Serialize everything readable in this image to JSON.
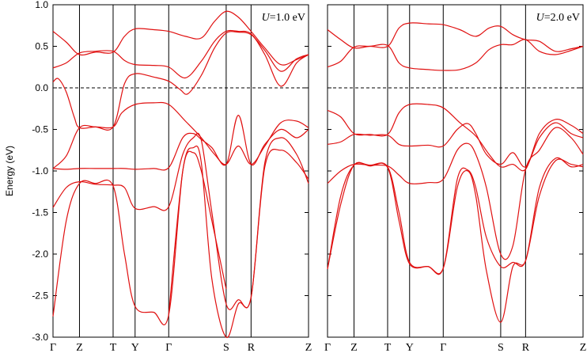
{
  "chart_data": [
    {
      "type": "line",
      "title": "",
      "annotation": {
        "symbol": "U",
        "text": "=1.0 eV"
      },
      "xlabel": "",
      "ylabel": "Energy (eV)",
      "ylim": [
        -3.0,
        1.0
      ],
      "yticks": [
        "1.0",
        "0.5",
        "0.0",
        "-0.5",
        "-1.0",
        "-1.5",
        "-2.0",
        "-2.5",
        "-3.0"
      ],
      "ytick_values": [
        1.0,
        0.5,
        0.0,
        -0.5,
        -1.0,
        -1.5,
        -2.0,
        -2.5,
        -3.0
      ],
      "fermi_level": 0.0,
      "grid": false,
      "kpoints": [
        {
          "label": "Γ",
          "pos": 0.0
        },
        {
          "label": "Z",
          "pos": 1.0
        },
        {
          "label": "T",
          "pos": 2.27
        },
        {
          "label": "Y",
          "pos": 3.1
        },
        {
          "label": "Γ",
          "pos": 4.37
        },
        {
          "label": "S",
          "pos": 6.54
        },
        {
          "label": "R",
          "pos": 7.48
        },
        {
          "label": "Z",
          "pos": 9.65
        }
      ],
      "bands": [
        {
          "x": [
            0,
            0.5,
            1.0,
            1.6,
            2.27,
            2.7,
            3.1,
            3.8,
            4.37,
            5.0,
            5.6,
            6.1,
            6.54,
            7.0,
            7.48,
            8.0,
            8.6,
            9.2,
            9.65
          ],
          "y": [
            0.68,
            0.55,
            0.4,
            0.43,
            0.43,
            0.62,
            0.71,
            0.7,
            0.68,
            0.62,
            0.6,
            0.8,
            0.92,
            0.85,
            0.68,
            0.48,
            0.28,
            0.34,
            0.4
          ]
        },
        {
          "x": [
            0,
            0.5,
            1.0,
            1.6,
            2.27,
            2.7,
            3.1,
            3.8,
            4.37,
            5.0,
            5.6,
            6.1,
            6.54,
            7.0,
            7.48,
            8.0,
            8.6,
            9.2,
            9.65
          ],
          "y": [
            0.24,
            0.3,
            0.42,
            0.44,
            0.44,
            0.33,
            0.28,
            0.27,
            0.25,
            0.12,
            0.32,
            0.56,
            0.68,
            0.68,
            0.65,
            0.4,
            0.02,
            0.3,
            0.4
          ]
        },
        {
          "x": [
            0,
            0.2,
            0.5,
            0.8,
            1.0,
            1.6,
            2.27,
            2.7,
            3.1,
            3.8,
            4.37,
            4.8,
            5.1,
            5.6,
            6.1,
            6.54,
            7.0,
            7.48,
            8.0,
            8.6,
            9.2,
            9.65
          ],
          "y": [
            0.07,
            0.11,
            -0.05,
            -0.35,
            -0.48,
            -0.47,
            -0.47,
            0.05,
            0.17,
            0.13,
            0.08,
            -0.02,
            -0.07,
            0.15,
            0.48,
            0.66,
            0.67,
            0.64,
            0.45,
            0.2,
            0.35,
            0.4
          ]
        },
        {
          "x": [
            0,
            0.5,
            1.0,
            1.6,
            2.27,
            2.6,
            3.1,
            3.8,
            4.37,
            5.0,
            5.6,
            6.1,
            6.54,
            7.0,
            7.48,
            8.0,
            8.6,
            9.2,
            9.65
          ],
          "y": [
            -0.97,
            -0.82,
            -0.48,
            -0.47,
            -0.47,
            -0.3,
            -0.2,
            -0.18,
            -0.2,
            -0.4,
            -0.6,
            -0.8,
            -0.92,
            -0.7,
            -0.92,
            -0.7,
            -0.42,
            -0.4,
            -0.48
          ]
        },
        {
          "x": [
            0,
            0.5,
            1.0,
            1.6,
            2.27,
            2.7,
            3.1,
            3.8,
            4.37,
            4.9,
            5.3,
            5.6,
            6.0,
            6.54,
            7.0,
            7.48,
            8.0,
            8.6,
            9.2,
            9.65
          ],
          "y": [
            -0.97,
            -0.98,
            -0.97,
            -0.97,
            -0.97,
            -0.97,
            -0.98,
            -0.97,
            -0.96,
            -0.6,
            -0.55,
            -0.62,
            -0.72,
            -0.92,
            -0.33,
            -0.92,
            -0.68,
            -0.5,
            -0.6,
            -0.5
          ]
        },
        {
          "x": [
            0,
            0.5,
            1.0,
            1.6,
            2.27,
            2.7,
            3.1,
            3.8,
            4.37,
            4.9,
            5.3,
            5.6,
            6.0,
            6.54,
            7.0,
            7.48,
            8.0,
            8.6,
            9.2,
            9.65
          ],
          "y": [
            -1.44,
            -1.2,
            -1.13,
            -1.16,
            -1.17,
            -1.2,
            -1.45,
            -1.43,
            -1.43,
            -0.8,
            -0.6,
            -0.63,
            -1.5,
            -2.6,
            -2.55,
            -2.52,
            -0.9,
            -0.6,
            -0.8,
            -1.15
          ]
        },
        {
          "x": [
            0,
            0.5,
            1.0,
            1.6,
            2.27,
            2.7,
            3.1,
            3.8,
            4.37,
            4.9,
            5.3,
            5.6,
            6.0,
            6.54,
            7.0,
            7.48,
            8.0,
            8.6,
            9.2,
            9.65
          ],
          "y": [
            -2.75,
            -1.6,
            -1.15,
            -1.15,
            -1.18,
            -2.0,
            -2.63,
            -2.7,
            -2.73,
            -1.0,
            -0.72,
            -0.9,
            -2.3,
            -3.0,
            -2.6,
            -2.52,
            -0.95,
            -0.75,
            -0.9,
            -1.1
          ]
        },
        {
          "x": [
            4.37,
            4.9,
            5.3,
            5.6,
            6.0,
            6.54
          ],
          "y": [
            -2.73,
            -1.0,
            -0.78,
            -1.0,
            -1.6,
            -2.42
          ]
        }
      ]
    },
    {
      "type": "line",
      "title": "",
      "annotation": {
        "symbol": "U",
        "text": "=2.0 eV"
      },
      "xlabel": "",
      "ylabel": "",
      "ylim": [
        -3.0,
        1.0
      ],
      "fermi_level": 0.0,
      "grid": false,
      "kpoints": [
        {
          "label": "Γ",
          "pos": 0.0
        },
        {
          "label": "Z",
          "pos": 1.0
        },
        {
          "label": "T",
          "pos": 2.27
        },
        {
          "label": "Y",
          "pos": 3.1
        },
        {
          "label": "Γ",
          "pos": 4.37
        },
        {
          "label": "S",
          "pos": 6.54
        },
        {
          "label": "R",
          "pos": 7.48
        },
        {
          "label": "Z",
          "pos": 9.65
        }
      ],
      "bands": [
        {
          "x": [
            0,
            0.5,
            1.0,
            1.6,
            2.27,
            2.7,
            3.1,
            3.8,
            4.37,
            5.0,
            5.6,
            6.1,
            6.54,
            7.0,
            7.48,
            8.0,
            8.6,
            9.2,
            9.65
          ],
          "y": [
            0.7,
            0.58,
            0.48,
            0.5,
            0.5,
            0.72,
            0.78,
            0.77,
            0.76,
            0.7,
            0.62,
            0.72,
            0.74,
            0.64,
            0.58,
            0.56,
            0.44,
            0.47,
            0.5
          ]
        },
        {
          "x": [
            0,
            0.5,
            1.0,
            1.6,
            2.27,
            2.7,
            3.1,
            3.8,
            4.37,
            5.0,
            5.6,
            6.1,
            6.54,
            7.0,
            7.48,
            8.0,
            8.6,
            9.2,
            9.65
          ],
          "y": [
            0.25,
            0.32,
            0.49,
            0.5,
            0.51,
            0.3,
            0.24,
            0.22,
            0.21,
            0.22,
            0.3,
            0.46,
            0.52,
            0.52,
            0.58,
            0.44,
            0.4,
            0.45,
            0.5
          ]
        },
        {
          "x": [
            0,
            0.5,
            1.0,
            1.6,
            2.27,
            2.7,
            3.1,
            3.8,
            4.37,
            5.0,
            5.6,
            6.1,
            6.54,
            7.0,
            7.48,
            8.0,
            8.6,
            9.2,
            9.65
          ],
          "y": [
            -0.27,
            -0.35,
            -0.55,
            -0.56,
            -0.56,
            -0.3,
            -0.2,
            -0.2,
            -0.24,
            -0.42,
            -0.58,
            -0.8,
            -0.95,
            -0.92,
            -0.98,
            -0.55,
            -0.38,
            -0.45,
            -0.55
          ]
        },
        {
          "x": [
            0,
            0.5,
            1.0,
            1.6,
            2.27,
            2.7,
            3.1,
            3.8,
            4.37,
            4.9,
            5.3,
            5.6,
            6.0,
            6.54,
            7.0,
            7.48,
            8.0,
            8.6,
            9.2,
            9.65
          ],
          "y": [
            -0.68,
            -0.65,
            -0.56,
            -0.57,
            -0.57,
            -0.68,
            -0.7,
            -0.69,
            -0.7,
            -0.5,
            -0.43,
            -0.55,
            -0.8,
            -0.92,
            -0.78,
            -0.95,
            -0.6,
            -0.42,
            -0.55,
            -0.6
          ]
        },
        {
          "x": [
            0,
            0.5,
            1.0,
            1.6,
            2.27,
            2.7,
            3.1,
            3.8,
            4.37,
            4.9,
            5.3,
            5.6,
            6.0,
            6.54,
            7.0,
            7.48,
            8.0,
            8.6,
            9.2,
            9.65
          ],
          "y": [
            -1.15,
            -1.0,
            -0.92,
            -0.93,
            -0.94,
            -1.05,
            -1.15,
            -1.14,
            -1.1,
            -0.75,
            -0.67,
            -0.8,
            -1.2,
            -2.0,
            -1.9,
            -0.98,
            -0.75,
            -0.48,
            -0.6,
            -0.8
          ]
        },
        {
          "x": [
            0,
            0.5,
            1.0,
            1.6,
            2.27,
            2.7,
            3.1,
            3.8,
            4.37,
            4.9,
            5.3,
            5.6,
            6.0,
            6.54,
            7.0,
            7.48,
            8.0,
            8.6,
            9.2,
            9.65
          ],
          "y": [
            -2.18,
            -1.3,
            -0.93,
            -0.93,
            -0.95,
            -1.5,
            -2.1,
            -2.15,
            -2.17,
            -1.1,
            -0.99,
            -1.2,
            -1.8,
            -2.15,
            -2.1,
            -2.08,
            -1.2,
            -0.85,
            -0.95,
            -0.92
          ]
        },
        {
          "x": [
            0,
            0.5,
            1.0,
            1.6,
            2.27,
            2.7,
            3.1,
            3.8,
            4.37,
            4.9,
            5.3,
            5.6,
            6.0,
            6.54,
            7.0,
            7.48,
            8.0,
            8.6,
            9.2,
            9.65
          ],
          "y": [
            -2.18,
            -1.4,
            -0.93,
            -0.94,
            -0.96,
            -1.6,
            -2.12,
            -2.15,
            -2.17,
            -1.2,
            -1.0,
            -1.3,
            -2.2,
            -2.82,
            -2.15,
            -2.08,
            -1.3,
            -0.88,
            -0.92,
            -0.95
          ]
        }
      ]
    }
  ]
}
